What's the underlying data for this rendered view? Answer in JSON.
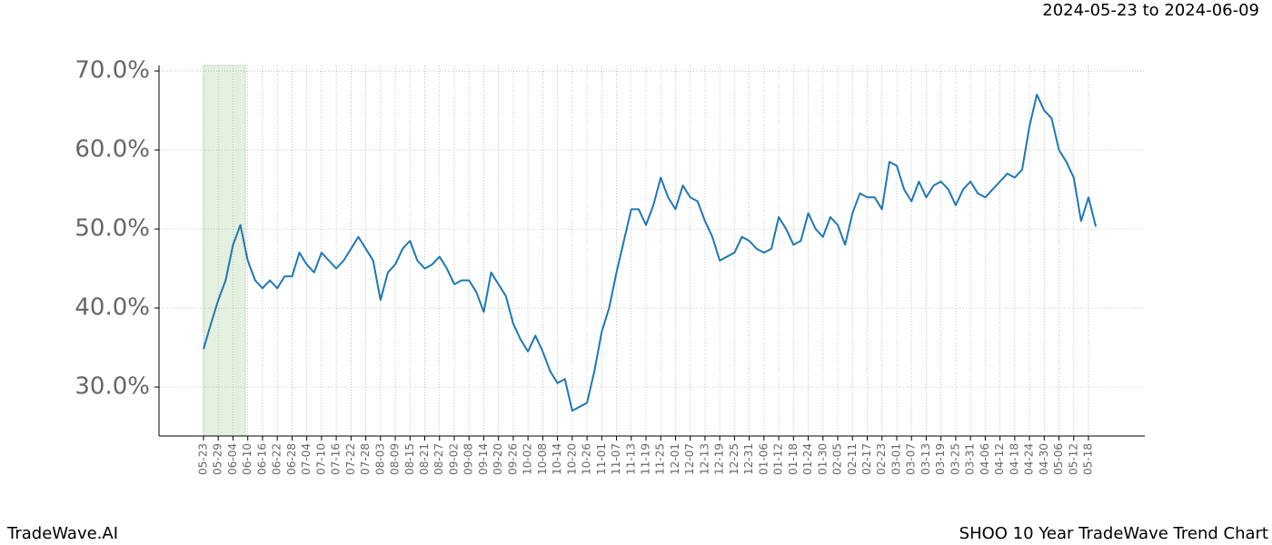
{
  "chart_data": {
    "type": "line",
    "title": "SHOO 10 Year TradeWave Trend Chart",
    "subtitle": "2024-05-23 to 2024-06-09",
    "brand": "TradeWave.AI",
    "categories": [
      "05-23",
      null,
      "05-29",
      null,
      "06-04",
      null,
      "06-10",
      null,
      "06-16",
      null,
      "06-22",
      null,
      "06-28",
      null,
      "07-04",
      null,
      "07-10",
      null,
      "07-16",
      null,
      "07-22",
      null,
      "07-28",
      null,
      "08-03",
      null,
      "08-09",
      null,
      "08-15",
      null,
      "08-21",
      null,
      "08-27",
      null,
      "09-02",
      null,
      "09-08",
      null,
      "09-14",
      null,
      "09-20",
      null,
      "09-26",
      null,
      "10-02",
      null,
      "10-08",
      null,
      "10-14",
      null,
      "10-20",
      null,
      "10-26",
      null,
      "11-01",
      null,
      "11-07",
      null,
      "11-13",
      null,
      "11-19",
      null,
      "11-25",
      null,
      "12-01",
      null,
      "12-07",
      null,
      "12-13",
      null,
      "12-19",
      null,
      "12-25",
      null,
      "12-31",
      null,
      "01-06",
      null,
      "01-12",
      null,
      "01-18",
      null,
      "01-24",
      null,
      "01-30",
      null,
      "02-05",
      null,
      "02-11",
      null,
      "02-17",
      null,
      "02-23",
      null,
      "03-01",
      null,
      "03-07",
      null,
      "03-13",
      null,
      "03-19",
      null,
      "03-25",
      null,
      "03-31",
      null,
      "04-06",
      null,
      "04-12",
      null,
      "04-18",
      null,
      "04-24",
      null,
      "04-30",
      null,
      "05-06",
      null,
      "05-12",
      null,
      "05-18",
      null
    ],
    "values": [
      34.8,
      38,
      41,
      43.5,
      48,
      50.5,
      46,
      43.5,
      42.5,
      43.5,
      42.5,
      44,
      44,
      47,
      45.5,
      44.5,
      47,
      46,
      45,
      46,
      47.5,
      49,
      47.5,
      46,
      41,
      44.5,
      45.5,
      47.5,
      48.5,
      46,
      45,
      45.5,
      46.5,
      45,
      43,
      43.5,
      43.5,
      42,
      39.5,
      44.5,
      43,
      41.5,
      38,
      36,
      34.5,
      36.5,
      34.5,
      32,
      30.5,
      31,
      27,
      27.5,
      28,
      32,
      37,
      40,
      44.5,
      48.5,
      52.5,
      52.5,
      50.5,
      53,
      56.5,
      54,
      52.5,
      55.5,
      54,
      53.5,
      51,
      49,
      46,
      46.5,
      47,
      49,
      48.5,
      47.5,
      47,
      47.5,
      51.5,
      50,
      48,
      48.5,
      52,
      50,
      49,
      51.5,
      50.5,
      48,
      52,
      54.5,
      54,
      54,
      52.5,
      58.5,
      58,
      55,
      53.5,
      56,
      54,
      55.5,
      56,
      55,
      53,
      55,
      56,
      54.5,
      54,
      55,
      56,
      57,
      56.5,
      57.5,
      63,
      67,
      65,
      64,
      60,
      58.5,
      56.5,
      51,
      54,
      50.3
    ],
    "color": "#1f77b4",
    "shade": [
      0,
      5.67
    ],
    "shade_color": "#d9ead3",
    "ylim": [
      23.8,
      70.7
    ],
    "yticks": [
      {
        "value": 30,
        "label": "30.0%"
      },
      {
        "value": 40,
        "label": "40.0%"
      },
      {
        "value": 50,
        "label": "50.0%"
      },
      {
        "value": 60,
        "label": "60.0%"
      },
      {
        "value": 70,
        "label": "70.0%"
      }
    ],
    "grid": true
  }
}
